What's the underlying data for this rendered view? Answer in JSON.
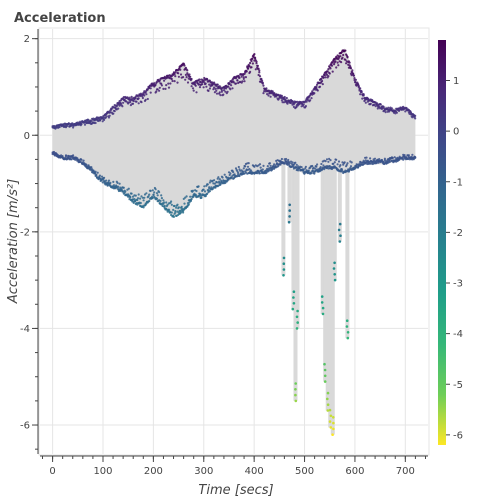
{
  "chart_data": {
    "type": "scatter",
    "title": "Acceleration",
    "xlabel": "Time [secs]",
    "ylabel": "Acceleration [m/s²]",
    "xlim": [
      -25,
      745
    ],
    "ylim": [
      -6.6,
      2.2
    ],
    "x_ticks": [
      0,
      100,
      200,
      300,
      400,
      500,
      600,
      700
    ],
    "y_ticks": [
      -6,
      -4,
      -2,
      0,
      2
    ],
    "x_minor_step": 20,
    "y_minor_step": 0.5,
    "grid": true,
    "colorbar": {
      "palette": "viridis",
      "low": -6.2,
      "high": 1.8,
      "ticks": [
        1,
        0,
        -1,
        -2,
        -3,
        -4,
        -5,
        -6
      ]
    },
    "envelope": {
      "x": [
        0,
        20,
        40,
        60,
        80,
        100,
        120,
        140,
        160,
        180,
        200,
        220,
        240,
        260,
        280,
        300,
        320,
        340,
        360,
        380,
        400,
        420,
        440,
        460,
        480,
        500,
        520,
        540,
        560,
        580,
        600,
        620,
        640,
        660,
        680,
        700,
        720
      ],
      "upper": [
        0.2,
        0.25,
        0.25,
        0.3,
        0.35,
        0.4,
        0.6,
        0.8,
        0.8,
        0.9,
        1.1,
        1.2,
        1.3,
        1.5,
        1.1,
        1.2,
        1.1,
        1.0,
        1.2,
        1.3,
        1.7,
        1.0,
        0.9,
        0.8,
        0.7,
        0.7,
        1.0,
        1.3,
        1.6,
        1.8,
        1.2,
        0.8,
        0.7,
        0.6,
        0.55,
        0.6,
        0.4
      ],
      "lower": [
        -0.4,
        -0.5,
        -0.5,
        -0.6,
        -0.8,
        -1.0,
        -1.1,
        -1.2,
        -1.4,
        -1.5,
        -1.3,
        -1.5,
        -1.7,
        -1.6,
        -1.3,
        -1.3,
        -1.1,
        -1.0,
        -0.9,
        -0.8,
        -0.8,
        -0.8,
        -0.7,
        -0.6,
        -0.7,
        -0.8,
        -0.8,
        -0.7,
        -0.7,
        -0.8,
        -0.7,
        -0.6,
        -0.6,
        -0.6,
        -0.55,
        -0.5,
        -0.5
      ]
    },
    "dips": [
      {
        "x": 458,
        "y": -2.9
      },
      {
        "x": 470,
        "y": -1.8
      },
      {
        "x": 478,
        "y": -3.6
      },
      {
        "x": 482,
        "y": -5.5
      },
      {
        "x": 486,
        "y": -4.0
      },
      {
        "x": 536,
        "y": -3.7
      },
      {
        "x": 541,
        "y": -5.1
      },
      {
        "x": 546,
        "y": -5.7
      },
      {
        "x": 551,
        "y": -6.05
      },
      {
        "x": 556,
        "y": -6.2
      },
      {
        "x": 560,
        "y": -3.0
      },
      {
        "x": 570,
        "y": -2.2
      },
      {
        "x": 585,
        "y": -4.2
      }
    ]
  }
}
